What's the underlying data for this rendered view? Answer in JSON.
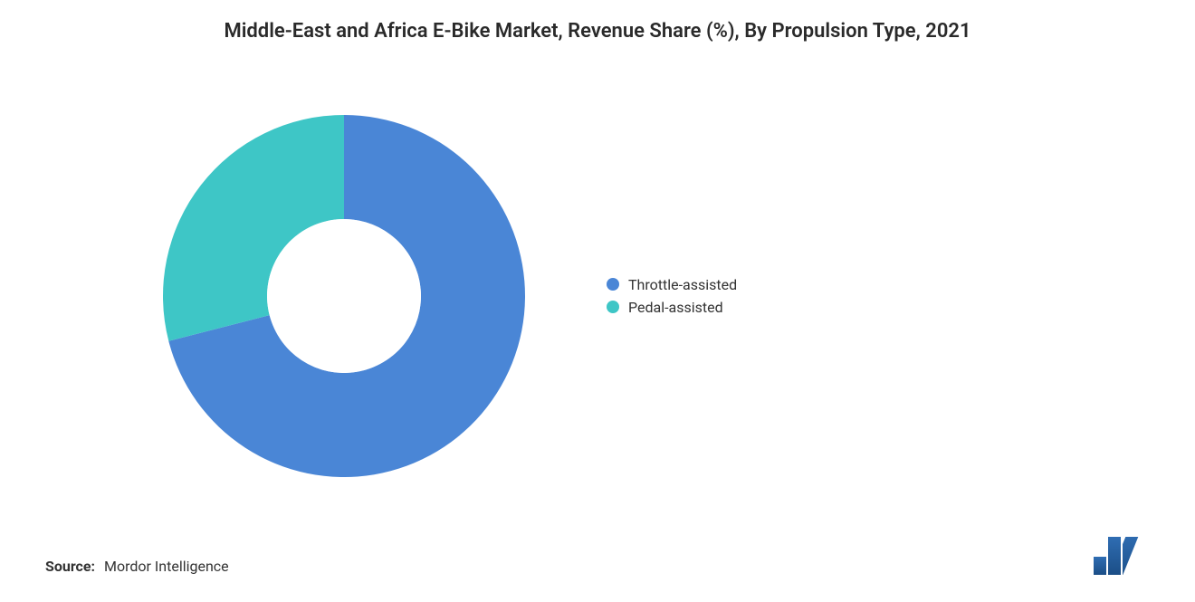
{
  "chart": {
    "type": "donut",
    "title": "Middle-East and Africa E-Bike Market, Revenue Share (%), By Propulsion Type, 2021",
    "title_fontsize": 22,
    "title_color": "#2a2a2a",
    "background_color": "#ffffff",
    "donut": {
      "outer_radius": 200,
      "inner_radius": 85,
      "center_fill": "#ffffff"
    },
    "series": [
      {
        "label": "Throttle-assisted",
        "value": 71,
        "color": "#4a86d6"
      },
      {
        "label": "Pedal-assisted",
        "value": 29,
        "color": "#3ec6c6"
      }
    ],
    "start_angle_deg": 90,
    "legend": {
      "position": "right",
      "fontsize": 16,
      "text_color": "#333333",
      "marker_shape": "circle",
      "marker_size": 14
    }
  },
  "source": {
    "label": "Source:",
    "value": "Mordor Intelligence",
    "fontsize": 16,
    "color": "#333333"
  },
  "logo": {
    "name": "mordor-logo",
    "bar_heights": [
      20,
      42
    ],
    "color_top": "#2f6db3",
    "color_bottom": "#1b4e86"
  }
}
